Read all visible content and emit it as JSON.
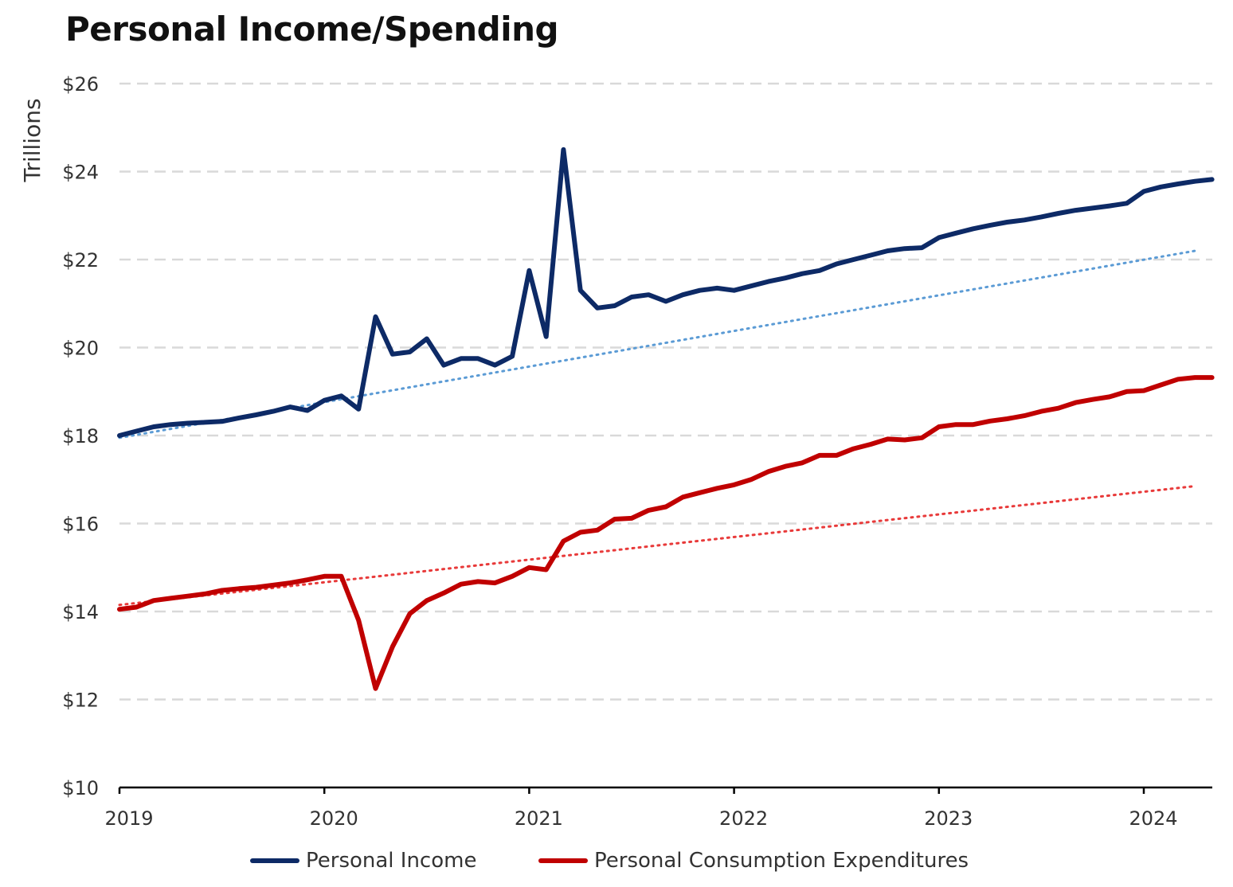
{
  "chart_data": {
    "type": "line",
    "title": "Personal Income/Spending",
    "ylabel": "Trillions",
    "xlabel": "",
    "ylim": [
      10,
      26
    ],
    "xlim": [
      2019.0,
      2024.333
    ],
    "y_ticks": [
      10,
      12,
      14,
      16,
      18,
      20,
      22,
      24,
      26
    ],
    "y_tick_labels": [
      "$10",
      "$12",
      "$14",
      "$16",
      "$18",
      "$20",
      "$22",
      "$24",
      "$26"
    ],
    "x_ticks": [
      2019,
      2020,
      2021,
      2022,
      2023,
      2024
    ],
    "x_tick_labels": [
      "2019",
      "2020",
      "2021",
      "2022",
      "2023",
      "2024"
    ],
    "grid": "horizontal dashed",
    "legend_position": "bottom",
    "series": [
      {
        "name": "Personal Income",
        "color": "#0d2a66",
        "style": "solid",
        "x": [
          2019.0,
          2019.083,
          2019.167,
          2019.25,
          2019.333,
          2019.417,
          2019.5,
          2019.583,
          2019.667,
          2019.75,
          2019.833,
          2019.917,
          2020.0,
          2020.083,
          2020.167,
          2020.25,
          2020.333,
          2020.417,
          2020.5,
          2020.583,
          2020.667,
          2020.75,
          2020.833,
          2020.917,
          2021.0,
          2021.083,
          2021.167,
          2021.25,
          2021.333,
          2021.417,
          2021.5,
          2021.583,
          2021.667,
          2021.75,
          2021.833,
          2021.917,
          2022.0,
          2022.083,
          2022.167,
          2022.25,
          2022.333,
          2022.417,
          2022.5,
          2022.583,
          2022.667,
          2022.75,
          2022.833,
          2022.917,
          2023.0,
          2023.083,
          2023.167,
          2023.25,
          2023.333,
          2023.417,
          2023.5,
          2023.583,
          2023.667,
          2023.75,
          2023.833,
          2023.917,
          2024.0,
          2024.083,
          2024.167,
          2024.25,
          2024.333
        ],
        "values": [
          18.0,
          18.1,
          18.2,
          18.25,
          18.28,
          18.3,
          18.32,
          18.4,
          18.47,
          18.55,
          18.65,
          18.57,
          18.8,
          18.9,
          18.6,
          20.7,
          19.85,
          19.9,
          20.2,
          19.6,
          19.75,
          19.75,
          19.6,
          19.8,
          21.75,
          20.25,
          24.5,
          21.3,
          20.9,
          20.95,
          21.15,
          21.2,
          21.05,
          21.2,
          21.3,
          21.35,
          21.3,
          21.4,
          21.5,
          21.58,
          21.68,
          21.75,
          21.9,
          22.0,
          22.1,
          22.2,
          22.25,
          22.27,
          22.5,
          22.6,
          22.7,
          22.78,
          22.85,
          22.9,
          22.97,
          23.05,
          23.12,
          23.17,
          23.22,
          23.28,
          23.55,
          23.65,
          23.72,
          23.78,
          23.82
        ]
      },
      {
        "name": "Personal Consumption Expenditures",
        "color": "#c00000",
        "style": "solid",
        "x": [
          2019.0,
          2019.083,
          2019.167,
          2019.25,
          2019.333,
          2019.417,
          2019.5,
          2019.583,
          2019.667,
          2019.75,
          2019.833,
          2019.917,
          2020.0,
          2020.083,
          2020.167,
          2020.25,
          2020.333,
          2020.417,
          2020.5,
          2020.583,
          2020.667,
          2020.75,
          2020.833,
          2020.917,
          2021.0,
          2021.083,
          2021.167,
          2021.25,
          2021.333,
          2021.417,
          2021.5,
          2021.583,
          2021.667,
          2021.75,
          2021.833,
          2021.917,
          2022.0,
          2022.083,
          2022.167,
          2022.25,
          2022.333,
          2022.417,
          2022.5,
          2022.583,
          2022.667,
          2022.75,
          2022.833,
          2022.917,
          2023.0,
          2023.083,
          2023.167,
          2023.25,
          2023.333,
          2023.417,
          2023.5,
          2023.583,
          2023.667,
          2023.75,
          2023.833,
          2023.917,
          2024.0,
          2024.083,
          2024.167,
          2024.25,
          2024.333
        ],
        "values": [
          14.05,
          14.1,
          14.25,
          14.3,
          14.35,
          14.4,
          14.48,
          14.52,
          14.55,
          14.6,
          14.65,
          14.72,
          14.8,
          14.8,
          13.8,
          12.25,
          13.2,
          13.95,
          14.25,
          14.42,
          14.62,
          14.68,
          14.65,
          14.8,
          15.0,
          14.95,
          15.6,
          15.8,
          15.85,
          16.1,
          16.12,
          16.3,
          16.38,
          16.6,
          16.7,
          16.8,
          16.88,
          17.0,
          17.18,
          17.3,
          17.38,
          17.55,
          17.55,
          17.7,
          17.8,
          17.92,
          17.9,
          17.95,
          18.2,
          18.25,
          18.25,
          18.33,
          18.38,
          18.45,
          18.55,
          18.62,
          18.75,
          18.82,
          18.88,
          19.0,
          19.02,
          19.15,
          19.28,
          19.32,
          19.32
        ]
      },
      {
        "color": "#5b9bd5",
        "style": "dotted",
        "x": [
          2019.0,
          2024.25
        ],
        "values": [
          17.95,
          22.2
        ]
      },
      {
        "color": "#e83a3a",
        "style": "dotted",
        "x": [
          2019.0,
          2024.25
        ],
        "values": [
          14.15,
          16.85
        ]
      }
    ]
  }
}
